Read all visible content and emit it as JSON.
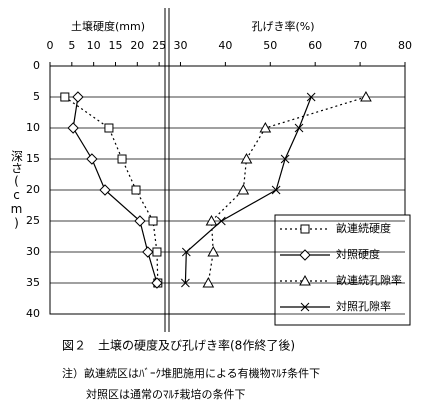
{
  "chart_data": {
    "type": "line",
    "x_title": "土壌硬度(mm)",
    "x2_title": "孔げき率(%)",
    "y_title": "深さ(cm)",
    "caption": "図２　土壌の硬度及び孔げき率(8作終了後)",
    "notes": [
      "注）畝連続区はﾊﾞｰｸ堆肥施用による有機物ﾏﾙﾁ条件下",
      "対照区は通常のﾏﾙﾁ栽培の条件下"
    ],
    "y": [
      5,
      10,
      15,
      20,
      25,
      30,
      35
    ],
    "ylim": [
      0,
      40
    ],
    "yticks": [
      0,
      5,
      10,
      15,
      20,
      25,
      30,
      35,
      40
    ],
    "y_inverted": true,
    "grid": true,
    "xlim": [
      0,
      26.8
    ],
    "xticks": [
      0,
      5,
      10,
      15,
      20,
      25
    ],
    "x2lim": [
      27,
      80
    ],
    "x2ticks": [
      30,
      40,
      50,
      60,
      70,
      80
    ],
    "legend": "lower-right",
    "series": [
      {
        "name": "畝連続硬度",
        "color": "#000000",
        "dash": "dotted",
        "marker": "square",
        "axis": "x",
        "values": [
          3.4,
          13.5,
          16.5,
          19.7,
          23.6,
          24.5,
          24.7
        ]
      },
      {
        "name": "対照硬度",
        "color": "#000000",
        "dash": "solid",
        "marker": "diamond",
        "axis": "x",
        "values": [
          6.4,
          5.3,
          9.6,
          12.6,
          20.6,
          22.4,
          24.5
        ]
      },
      {
        "name": "畝連続孔隙率",
        "color": "#000000",
        "dash": "dotted",
        "marker": "triangle",
        "axis": "x2",
        "values": [
          71.3,
          48.9,
          44.7,
          44.0,
          36.9,
          37.3,
          36.2
        ]
      },
      {
        "name": "対照孔隙率",
        "color": "#000000",
        "dash": "solid",
        "marker": "cross",
        "axis": "x2",
        "values": [
          59.1,
          56.4,
          53.3,
          51.3,
          39.1,
          31.3,
          31.1
        ]
      }
    ]
  }
}
